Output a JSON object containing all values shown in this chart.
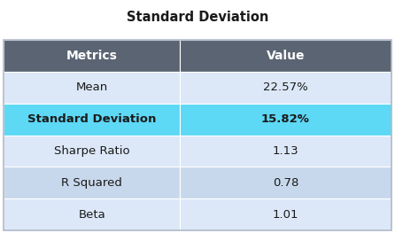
{
  "title": "Standard Deviation",
  "title_fontsize": 10.5,
  "title_fontweight": "bold",
  "col_headers": [
    "Metrics",
    "Value"
  ],
  "rows": [
    [
      "Mean",
      "22.57%"
    ],
    [
      "Standard Deviation",
      "15.82%"
    ],
    [
      "Sharpe Ratio",
      "1.13"
    ],
    [
      "R Squared",
      "0.78"
    ],
    [
      "Beta",
      "1.01"
    ]
  ],
  "header_bg": "#5a6472",
  "header_fg": "#ffffff",
  "row_bg_light": "#dce8f8",
  "row_bg_highlight": "#5dd8f5",
  "row_bg_alt": "#c8d8ec",
  "highlight_row_index": 1,
  "col_split": 0.455,
  "highlight_row_fontweight": "bold",
  "normal_row_fontweight": "normal",
  "cell_fontsize": 9.5,
  "header_fontsize": 10,
  "fig_bg": "#ffffff",
  "text_color": "#1a1a1a",
  "edge_color": "#ffffff",
  "outer_edge_color": "#b0b8c8"
}
